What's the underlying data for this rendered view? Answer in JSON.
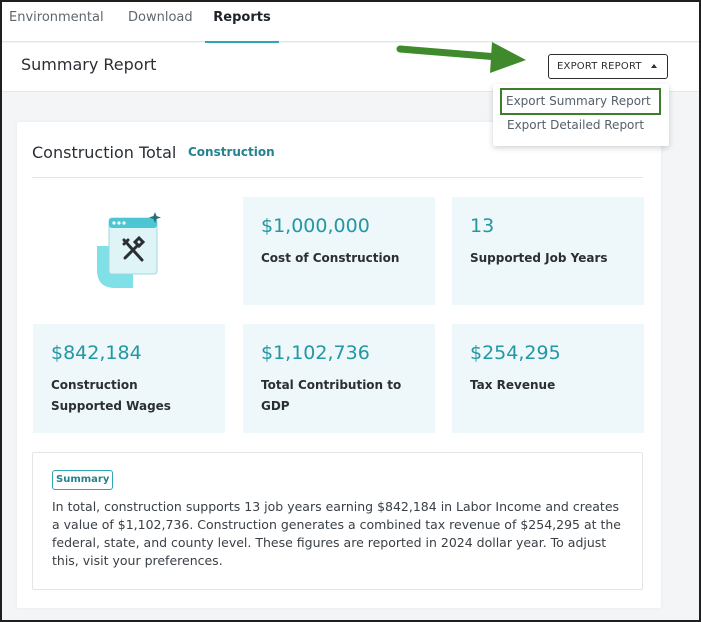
{
  "tabs": [
    {
      "label": "Environmental",
      "active": false
    },
    {
      "label": "Download",
      "active": false
    },
    {
      "label": "Reports",
      "active": true
    }
  ],
  "header": {
    "title": "Summary Report",
    "export_button_label": "EXPORT REPORT"
  },
  "export_menu": {
    "items": [
      {
        "label": "Export Summary Report",
        "highlighted": true
      },
      {
        "label": "Export Detailed Report",
        "highlighted": false
      }
    ]
  },
  "card": {
    "title": "Construction Total",
    "tag": "Construction",
    "metrics": [
      {
        "value": "$1,000,000",
        "label": "Cost of Construction"
      },
      {
        "value": "13",
        "label": "Supported Job Years"
      },
      {
        "value": "$842,184",
        "label": "Construction Supported Wages"
      },
      {
        "value": "$1,102,736",
        "label": "Total Contribution to GDP"
      },
      {
        "value": "$254,295",
        "label": "Tax Revenue"
      }
    ],
    "summary": {
      "badge": "Summary",
      "text": "In total, construction supports 13 job years earning $842,184 in Labor Income and creates a value of $1,102,736. Construction generates a combined tax revenue of $254,295 at the federal, state, and county level. These figures are reported in 2024 dollar year. To adjust this, visit your preferences."
    }
  },
  "icons": {
    "illustration": "construction-tools-illustration",
    "caret": "caret-up-icon",
    "annotation": "green-arrow"
  },
  "colors": {
    "accent": "#2fa6b2",
    "value_text": "#2397a3",
    "tile_background": "#eef7f9",
    "annotation_green": "#3e7d2c"
  }
}
